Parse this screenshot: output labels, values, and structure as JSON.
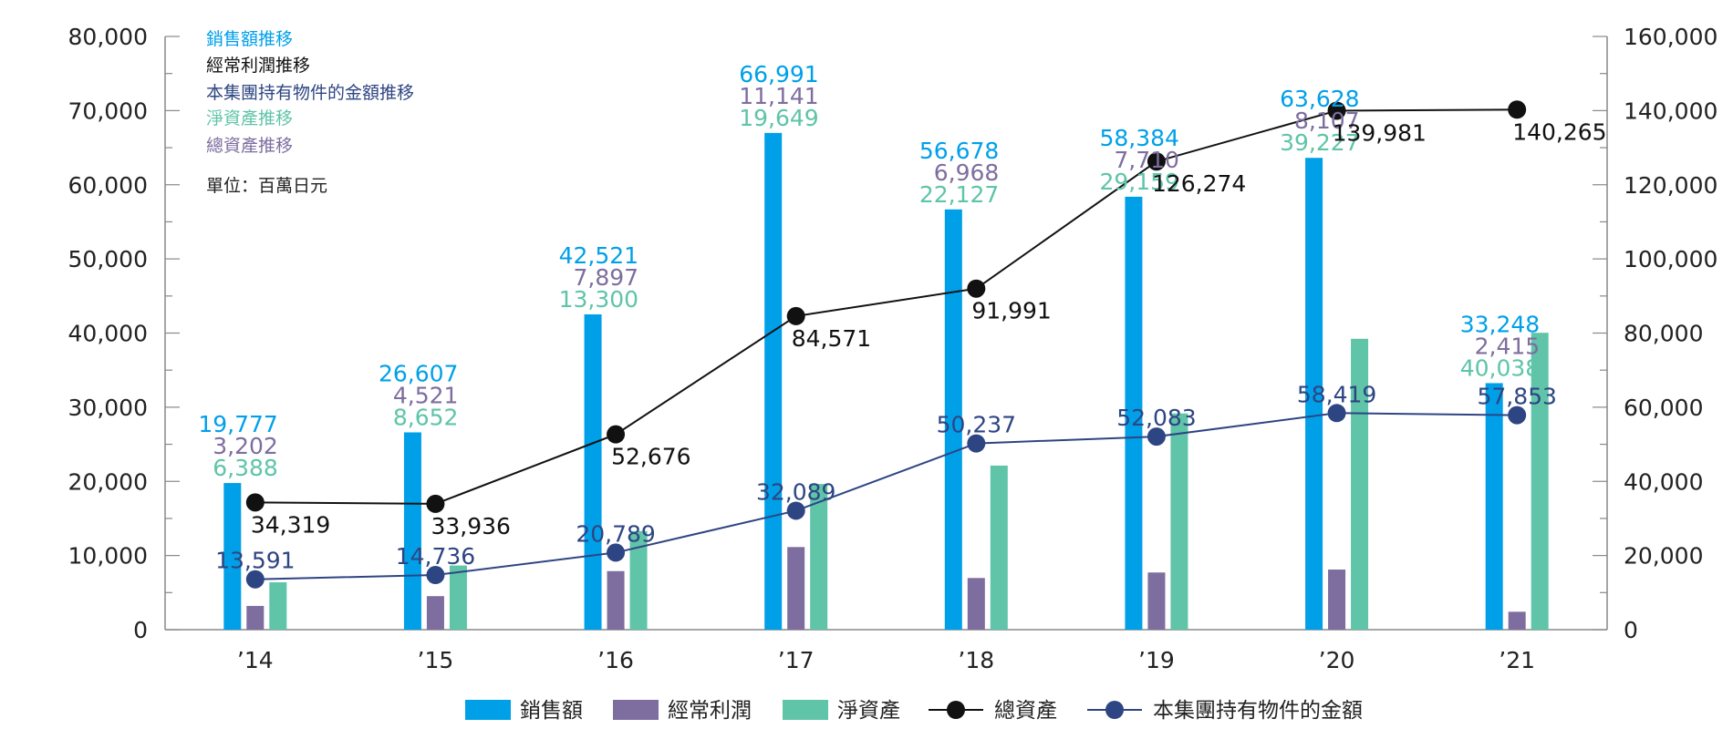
{
  "colors": {
    "sales": "#00a0e9",
    "profit": "#7d6e9f",
    "net_assets": "#5fc4a8",
    "total_assets": "#111111",
    "group_assets": "#2e4583",
    "axis": "#888888"
  },
  "notes": {
    "sales": "銷售額推移",
    "profit": "經常利潤推移",
    "group_assets": "本集團持有物件的金額推移",
    "net_assets": "淨資產推移",
    "total_assets": "總資產推移",
    "unit": "單位：百萬日元"
  },
  "legend": [
    "銷售額",
    "經常利潤",
    "淨資產",
    "總資產",
    "本集團持有物件的金額"
  ],
  "chart_data": {
    "type": "bar",
    "categories": [
      "’14",
      "’15",
      "’16",
      "’17",
      "’18",
      "’19",
      "’20",
      "’21"
    ],
    "y_left": {
      "range": [
        0,
        80000
      ],
      "ticks": [
        "0",
        "10,000",
        "20,000",
        "30,000",
        "40,000",
        "50,000",
        "60,000",
        "70,000",
        "80,000"
      ]
    },
    "y_right": {
      "range": [
        0,
        160000
      ],
      "ticks": [
        "0",
        "20,000",
        "40,000",
        "60,000",
        "80,000",
        "100,000",
        "120,000",
        "140,000",
        "160,000"
      ]
    },
    "series": [
      {
        "name": "銷售額",
        "type": "bar",
        "axis": "left",
        "values": [
          19777,
          26607,
          42521,
          66991,
          56678,
          58384,
          63628,
          33248
        ],
        "labels": [
          "19,777",
          "26,607",
          "42,521",
          "66,991",
          "56,678",
          "58,384",
          "63,628",
          "33,248"
        ]
      },
      {
        "name": "經常利潤",
        "type": "bar",
        "axis": "left",
        "values": [
          3202,
          4521,
          7897,
          11141,
          6968,
          7710,
          8107,
          2415
        ],
        "labels": [
          "3,202",
          "4,521",
          "7,897",
          "11,141",
          "6,968",
          "7,710",
          "8,107",
          "2,415"
        ]
      },
      {
        "name": "淨資產",
        "type": "bar",
        "axis": "left",
        "values": [
          6388,
          8652,
          13300,
          19649,
          22127,
          29159,
          39227,
          40038
        ],
        "labels": [
          "6,388",
          "8,652",
          "13,300",
          "19,649",
          "22,127",
          "29,159",
          "39,227",
          "40,038"
        ]
      },
      {
        "name": "總資產",
        "type": "line",
        "axis": "right",
        "values": [
          34319,
          33936,
          52676,
          84571,
          91991,
          126274,
          139981,
          140265
        ],
        "labels": [
          "34,319",
          "33,936",
          "52,676",
          "84,571",
          "91,991",
          "126,274",
          "139,981",
          "140,265"
        ]
      },
      {
        "name": "本集團持有物件的金額",
        "type": "line",
        "axis": "right",
        "values": [
          13591,
          14736,
          20789,
          32089,
          50237,
          52083,
          58419,
          57853
        ],
        "labels": [
          "13,591",
          "14,736",
          "20,789",
          "32,089",
          "50,237",
          "52,083",
          "58,419",
          "57,853"
        ]
      }
    ]
  }
}
